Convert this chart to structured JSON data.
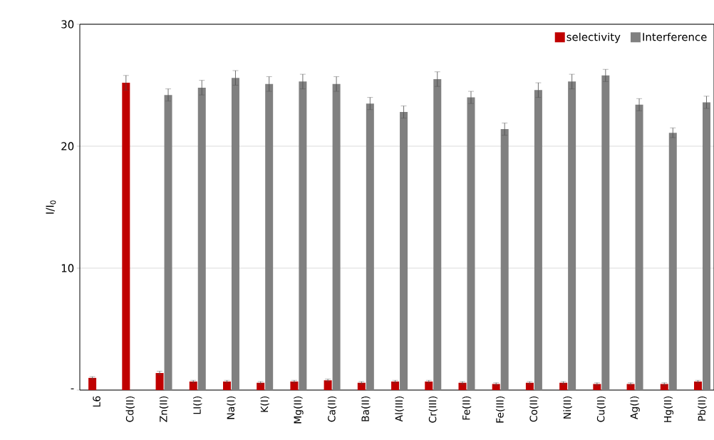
{
  "chart_data": {
    "type": "bar",
    "ylabel": "I/I$_{0}$",
    "categories": [
      "L6",
      "Cd(II)",
      "Zn(II)",
      "LI(I)",
      "Na(I)",
      "K(I)",
      "Mg(II)",
      "Ca(II)",
      "Ba(II)",
      "Al(III)",
      "Cr(III)",
      "Fe(II)",
      "Fe(III)",
      "Co(II)",
      "Ni(II)",
      "Cu(II)",
      "Ag(I)",
      "Hg(II)",
      "Pb(II)"
    ],
    "series": [
      {
        "name": "selectivity",
        "color": "#c00000",
        "values": [
          1.0,
          25.2,
          1.4,
          0.7,
          0.7,
          0.6,
          0.7,
          0.8,
          0.6,
          0.7,
          0.7,
          0.6,
          0.5,
          0.6,
          0.6,
          0.5,
          0.5,
          0.5,
          0.7
        ],
        "errors": [
          0.1,
          0.6,
          0.15,
          0.1,
          0.1,
          0.1,
          0.1,
          0.1,
          0.1,
          0.1,
          0.1,
          0.1,
          0.1,
          0.1,
          0.1,
          0.1,
          0.1,
          0.1,
          0.1
        ]
      },
      {
        "name": "Interference",
        "color": "#808080",
        "values": [
          null,
          null,
          24.2,
          24.8,
          25.6,
          25.1,
          25.3,
          25.1,
          23.5,
          22.8,
          25.5,
          24.0,
          21.4,
          24.6,
          25.3,
          25.8,
          23.4,
          21.1,
          23.6
        ],
        "errors": [
          null,
          null,
          0.5,
          0.6,
          0.6,
          0.6,
          0.6,
          0.6,
          0.5,
          0.5,
          0.6,
          0.5,
          0.5,
          0.6,
          0.6,
          0.5,
          0.5,
          0.4,
          0.5
        ]
      }
    ],
    "ylim": [
      0,
      30
    ],
    "yticks": [
      {
        "value": 0,
        "label": "-"
      },
      10,
      20,
      30
    ],
    "grid": "y",
    "legend": "top right"
  }
}
